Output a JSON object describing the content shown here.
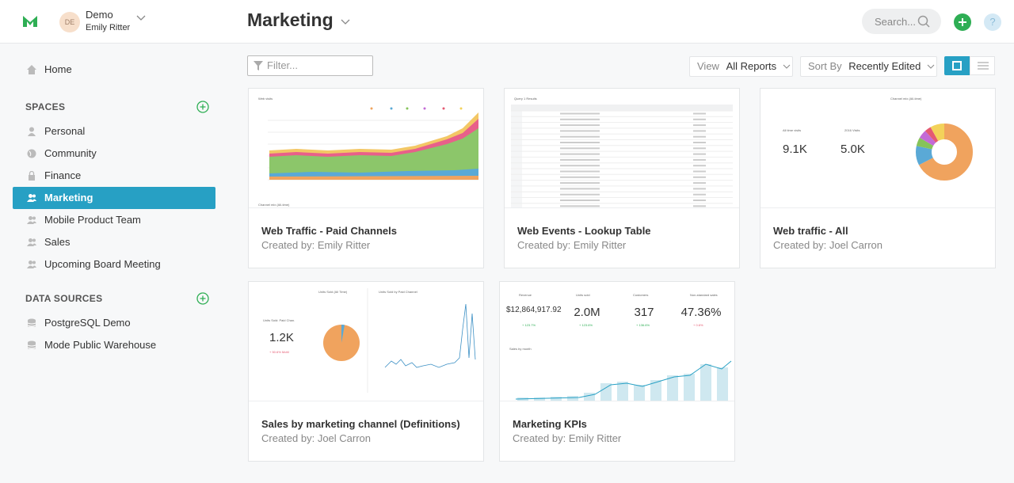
{
  "header": {
    "avatar": "DE",
    "space": "Demo",
    "user": "Emily Ritter",
    "title": "Marketing",
    "search": "Search...",
    "help": "?"
  },
  "sidebar": {
    "home": "Home",
    "spaces_heading": "SPACES",
    "spaces": [
      {
        "label": "Personal",
        "icon": "person"
      },
      {
        "label": "Community",
        "icon": "globe"
      },
      {
        "label": "Finance",
        "icon": "lock"
      },
      {
        "label": "Marketing",
        "icon": "group",
        "selected": true
      },
      {
        "label": "Mobile Product Team",
        "icon": "group"
      },
      {
        "label": "Sales",
        "icon": "group"
      },
      {
        "label": "Upcoming Board Meeting",
        "icon": "group"
      }
    ],
    "data_sources_heading": "DATA SOURCES",
    "data_sources": [
      "PostgreSQL Demo",
      "Mode Public Warehouse"
    ]
  },
  "toolbar": {
    "filter_placeholder": "Filter...",
    "view_label": "View",
    "view_value": "All Reports",
    "sort_label": "Sort By",
    "sort_value": "Recently Edited"
  },
  "reports": [
    {
      "title": "Web Traffic - Paid Channels",
      "author": "Created by: Emily Ritter",
      "thumb": {
        "heading": "Web visits",
        "footer": "Channel mix (All-time)"
      }
    },
    {
      "title": "Web Events - Lookup Table",
      "author": "Created by: Emily Ritter",
      "thumb": {
        "heading": "Query 1 Results"
      }
    },
    {
      "title": "Web traffic - All",
      "author": "Created by: Joel Carron",
      "thumb": {
        "kpis": [
          {
            "label": "All time visits",
            "value": "9.1K"
          },
          {
            "label": "2016 Visits",
            "value": "5.0K"
          }
        ],
        "heading": "Channel mix (All-time)"
      }
    },
    {
      "title": "Sales by marketing channel (Definitions)",
      "author": "Created by: Joel Carron",
      "thumb": {
        "kpis": [
          {
            "label": "Units Sold: Paid Chan.",
            "value": "1.2K",
            "change": "+ 50.6% MoM"
          }
        ],
        "heading": "Units Sold (All Time)",
        "heading2": "Units Sold by Paid Channel"
      }
    },
    {
      "title": "Marketing KPIs",
      "author": "Created by: Emily Ritter",
      "thumb": {
        "kpis": [
          {
            "label": "Revenue",
            "value": "$12,864,917.92",
            "change": "+ 123.7%"
          },
          {
            "label": "Units sold",
            "value": "2.0M",
            "change": "+ 123.6%"
          },
          {
            "label": "Customers",
            "value": "317",
            "change": "+ 136.6%"
          },
          {
            "label": "Non-standard sales",
            "value": "47.36%",
            "change": "+ 0.6%"
          }
        ],
        "heading": "Sales by month"
      }
    }
  ]
}
